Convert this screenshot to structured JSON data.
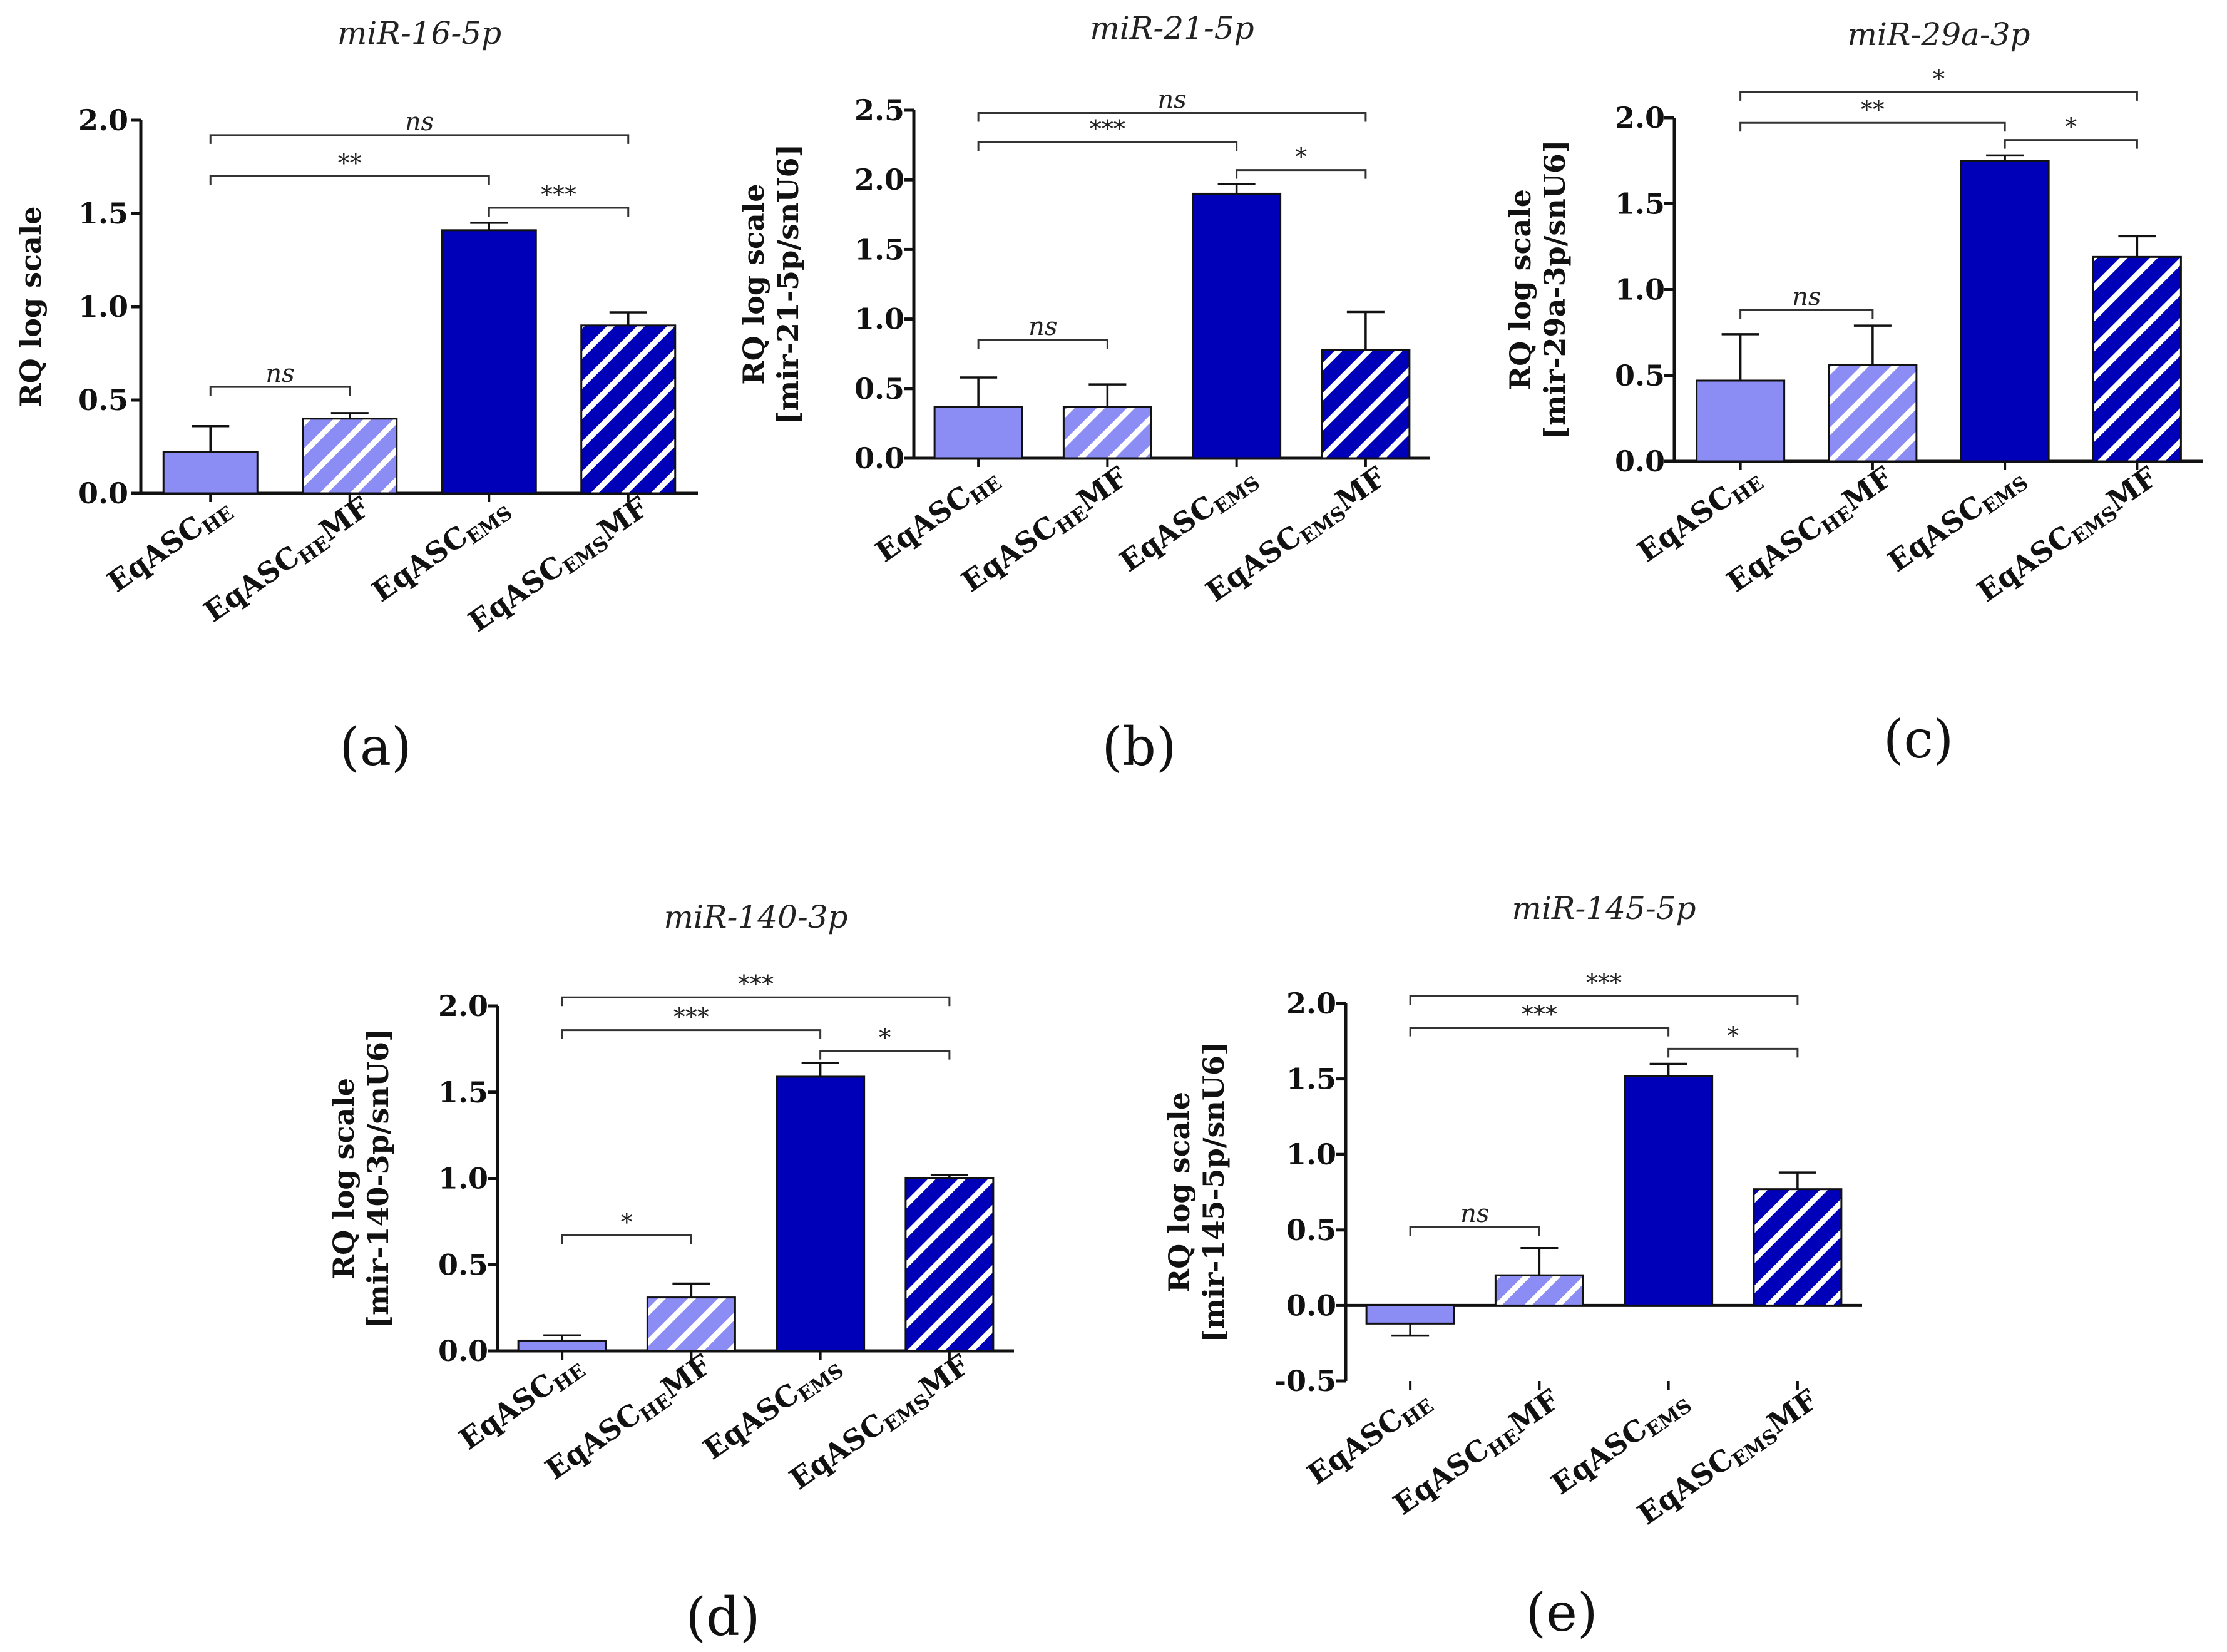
{
  "colors": {
    "light": "#8c8cf5",
    "dark": "#0000b8",
    "hatch": "#ffffff",
    "axis": "#111111",
    "bracket": "#333333"
  },
  "categories": [
    {
      "main": "EqASC",
      "sub": "HE",
      "suffix": ""
    },
    {
      "main": "EqASC",
      "sub": "HE",
      "suffix": "MF"
    },
    {
      "main": "EqASC",
      "sub": "EMS",
      "suffix": ""
    },
    {
      "main": "EqASC",
      "sub": "EMS",
      "suffix": "MF"
    }
  ],
  "chart_data": [
    {
      "type": "bar",
      "label": "(a)",
      "title": "miR-16-5p",
      "ylabel": [
        "RQ log scale"
      ],
      "ylim": [
        0,
        2.0
      ],
      "yticks": [
        "0.0",
        "0.5",
        "1.0",
        "1.5",
        "2.0"
      ],
      "categories": [
        "EqASCHE",
        "EqASCHEMF",
        "EqASCEMS",
        "EqASCEMSMF"
      ],
      "values": [
        0.22,
        0.4,
        1.41,
        0.9
      ],
      "errors": [
        0.14,
        0.03,
        0.04,
        0.07
      ],
      "comparisons": [
        {
          "from": 0,
          "to": 3,
          "y": 1.92,
          "text": "ns"
        },
        {
          "from": 0,
          "to": 2,
          "y": 1.7,
          "text": "**"
        },
        {
          "from": 2,
          "to": 3,
          "y": 1.53,
          "text": "***"
        },
        {
          "from": 0,
          "to": 1,
          "y": 0.57,
          "text": "ns"
        }
      ]
    },
    {
      "type": "bar",
      "label": "(b)",
      "title": "miR-21-5p",
      "ylabel": [
        "RQ log scale",
        "[mir-21-5p/snU6]"
      ],
      "ylim": [
        0,
        2.5
      ],
      "yticks": [
        "0.0",
        "0.5",
        "1.0",
        "1.5",
        "2.0",
        "2.5"
      ],
      "categories": [
        "EqASCHE",
        "EqASCHEMF",
        "EqASCEMS",
        "EqASCEMSMF"
      ],
      "values": [
        0.37,
        0.37,
        1.9,
        0.78
      ],
      "errors": [
        0.21,
        0.16,
        0.07,
        0.27
      ],
      "comparisons": [
        {
          "from": 0,
          "to": 3,
          "y": 2.48,
          "text": "ns"
        },
        {
          "from": 0,
          "to": 2,
          "y": 2.27,
          "text": "***"
        },
        {
          "from": 2,
          "to": 3,
          "y": 2.07,
          "text": "*"
        },
        {
          "from": 0,
          "to": 1,
          "y": 0.85,
          "text": "ns"
        }
      ]
    },
    {
      "type": "bar",
      "label": "(c)",
      "title": "miR-29a-3p",
      "ylabel": [
        "RQ log scale",
        "[mir-29a-3p/snU6]"
      ],
      "ylim": [
        0,
        2.0
      ],
      "yticks": [
        "0.0",
        "0.5",
        "1.0",
        "1.5",
        "2.0"
      ],
      "categories": [
        "EqASCHE",
        "EqASCHEMF",
        "EqASCEMS",
        "EqASCEMSMF"
      ],
      "values": [
        0.47,
        0.56,
        1.75,
        1.19
      ],
      "errors": [
        0.27,
        0.23,
        0.03,
        0.12
      ],
      "comparisons": [
        {
          "from": 0,
          "to": 3,
          "y": 2.15,
          "text": "*"
        },
        {
          "from": 0,
          "to": 2,
          "y": 1.97,
          "text": "**"
        },
        {
          "from": 2,
          "to": 3,
          "y": 1.87,
          "text": "*"
        },
        {
          "from": 0,
          "to": 1,
          "y": 0.88,
          "text": "ns"
        }
      ]
    },
    {
      "type": "bar",
      "label": "(d)",
      "title": "miR-140-3p",
      "ylabel": [
        "RQ log scale",
        "[mir-140-3p/snU6]"
      ],
      "ylim": [
        0,
        2.0
      ],
      "yticks": [
        "0.0",
        "0.5",
        "1.0",
        "1.5",
        "2.0"
      ],
      "categories": [
        "EqASCHE",
        "EqASCHEMF",
        "EqASCEMS",
        "EqASCEMSMF"
      ],
      "values": [
        0.06,
        0.31,
        1.59,
        1.0
      ],
      "errors": [
        0.03,
        0.08,
        0.08,
        0.02
      ],
      "comparisons": [
        {
          "from": 0,
          "to": 3,
          "y": 2.05,
          "text": "***"
        },
        {
          "from": 0,
          "to": 2,
          "y": 1.86,
          "text": "***"
        },
        {
          "from": 2,
          "to": 3,
          "y": 1.74,
          "text": "*"
        },
        {
          "from": 0,
          "to": 1,
          "y": 0.67,
          "text": "*"
        }
      ]
    },
    {
      "type": "bar",
      "label": "(e)",
      "title": "miR-145-5p",
      "ylabel": [
        "RQ log scale",
        "[mir-145-5p/snU6]"
      ],
      "ylim": [
        -0.5,
        2.0
      ],
      "yticks": [
        "-0.5",
        "0.0",
        "0.5",
        "1.0",
        "1.5",
        "2.0"
      ],
      "categories": [
        "EqASCHE",
        "EqASCHEMF",
        "EqASCEMS",
        "EqASCEMSMF"
      ],
      "values": [
        -0.12,
        0.2,
        1.52,
        0.77
      ],
      "errors": [
        0.08,
        0.18,
        0.08,
        0.11
      ],
      "comparisons": [
        {
          "from": 0,
          "to": 3,
          "y": 2.05,
          "text": "***"
        },
        {
          "from": 0,
          "to": 2,
          "y": 1.84,
          "text": "***"
        },
        {
          "from": 2,
          "to": 3,
          "y": 1.7,
          "text": "*"
        },
        {
          "from": 0,
          "to": 1,
          "y": 0.52,
          "text": "ns"
        }
      ]
    }
  ]
}
